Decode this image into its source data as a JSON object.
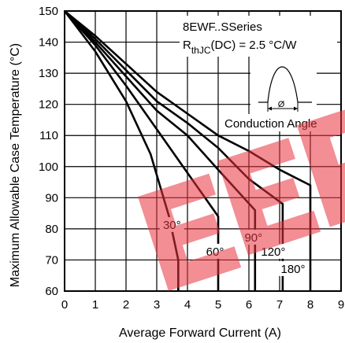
{
  "chart_data": {
    "type": "line",
    "title": "",
    "xlabel": "Average Forward Current (A)",
    "ylabel": "Maximum Allowable Case Temperature (°C)",
    "xlim": [
      0,
      9
    ],
    "ylim": [
      60,
      150
    ],
    "xticks": [
      0,
      1,
      2,
      3,
      4,
      5,
      6,
      7,
      8,
      9
    ],
    "yticks": [
      60,
      70,
      80,
      90,
      100,
      110,
      120,
      130,
      140,
      150
    ],
    "xtick_labels": [
      "0",
      "1",
      "2",
      "3",
      "4",
      "5",
      "6",
      "7",
      "8",
      "9"
    ],
    "ytick_labels": [
      "60",
      "70",
      "80",
      "90",
      "100",
      "110",
      "120",
      "130",
      "140",
      "150"
    ],
    "grid": true,
    "series": [
      {
        "name": "30°",
        "points": [
          [
            0,
            150
          ],
          [
            1,
            137
          ],
          [
            2,
            121
          ],
          [
            2.8,
            104
          ],
          [
            3.4,
            84
          ],
          [
            3.7,
            70
          ],
          [
            3.7,
            60
          ]
        ]
      },
      {
        "name": "60°",
        "points": [
          [
            0,
            150
          ],
          [
            1,
            139
          ],
          [
            2,
            126
          ],
          [
            3,
            112
          ],
          [
            4,
            98
          ],
          [
            5,
            84
          ],
          [
            5,
            60
          ]
        ]
      },
      {
        "name": "90°",
        "points": [
          [
            0,
            150
          ],
          [
            1,
            140
          ],
          [
            2,
            129
          ],
          [
            3,
            118
          ],
          [
            4,
            110
          ],
          [
            5,
            99
          ],
          [
            6.2,
            86
          ],
          [
            6.2,
            60
          ]
        ]
      },
      {
        "name": "120°",
        "points": [
          [
            0,
            150
          ],
          [
            1,
            141
          ],
          [
            2,
            131
          ],
          [
            3,
            121
          ],
          [
            4,
            114
          ],
          [
            5,
            106
          ],
          [
            6,
            96
          ],
          [
            7.1,
            88
          ],
          [
            7.1,
            60
          ]
        ]
      },
      {
        "name": "180°",
        "points": [
          [
            0,
            150
          ],
          [
            1,
            142
          ],
          [
            2,
            133
          ],
          [
            3,
            124
          ],
          [
            4,
            117
          ],
          [
            5,
            110
          ],
          [
            6,
            105
          ],
          [
            7,
            99
          ],
          [
            8,
            94
          ],
          [
            8,
            60
          ]
        ]
      }
    ],
    "annotations": {
      "series_name": "8EWF..SSeries",
      "rth_prefix": "R",
      "rth_sub": "thJC",
      "rth_suffix": "(DC) = 2.5 °C/W",
      "inset_phi": "Ø",
      "inset_label": "Conduction Angle"
    },
    "watermark_text": "EEP",
    "colors": {
      "line": "#000000",
      "grid": "#000000",
      "watermark": "#e8323c"
    }
  }
}
